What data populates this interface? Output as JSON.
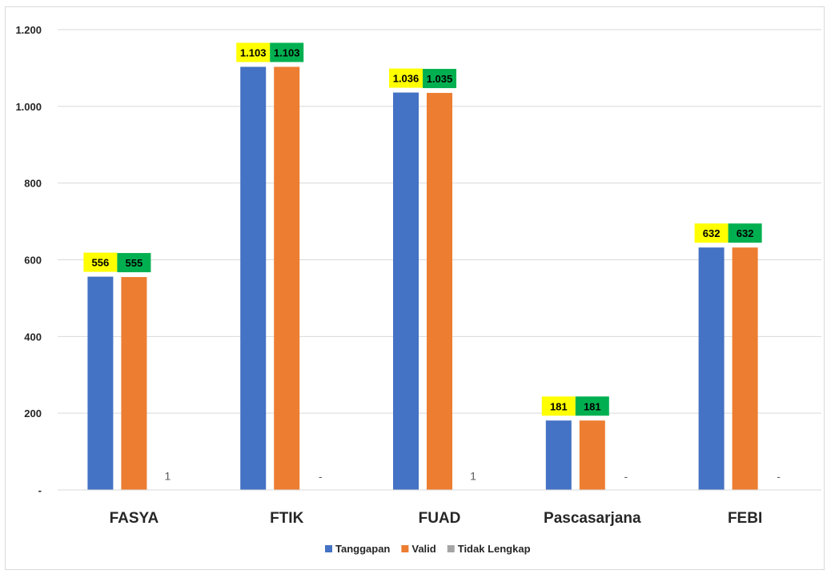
{
  "chart_data": {
    "type": "bar",
    "categories": [
      "FASYA",
      "FTIK",
      "FUAD",
      "Pascasarjana",
      "FEBI"
    ],
    "series": [
      {
        "name": "Tanggapan",
        "values": [
          556,
          1103,
          1036,
          181,
          632
        ],
        "labels": [
          "556",
          "1.103",
          "1.036",
          "181",
          "632"
        ],
        "color": "#4472c4",
        "label_bg": "#ffff00"
      },
      {
        "name": "Valid",
        "values": [
          555,
          1103,
          1035,
          181,
          632
        ],
        "labels": [
          "555",
          "1.103",
          "1.035",
          "181",
          "632"
        ],
        "color": "#ed7d31",
        "label_bg": "#00b050"
      },
      {
        "name": "Tidak Lengkap",
        "values": [
          1,
          0,
          1,
          0,
          0
        ],
        "labels": [
          "1",
          "-",
          "1",
          "-",
          "-"
        ],
        "color": "#a5a5a5"
      }
    ],
    "ylim": [
      0,
      1200
    ],
    "yticks": [
      0,
      200,
      400,
      600,
      800,
      1000,
      1200
    ],
    "ytick_labels": [
      "-",
      "200",
      "400",
      "600",
      "800",
      "1.000",
      "1.200"
    ],
    "grid": true,
    "legend_position": "bottom"
  }
}
